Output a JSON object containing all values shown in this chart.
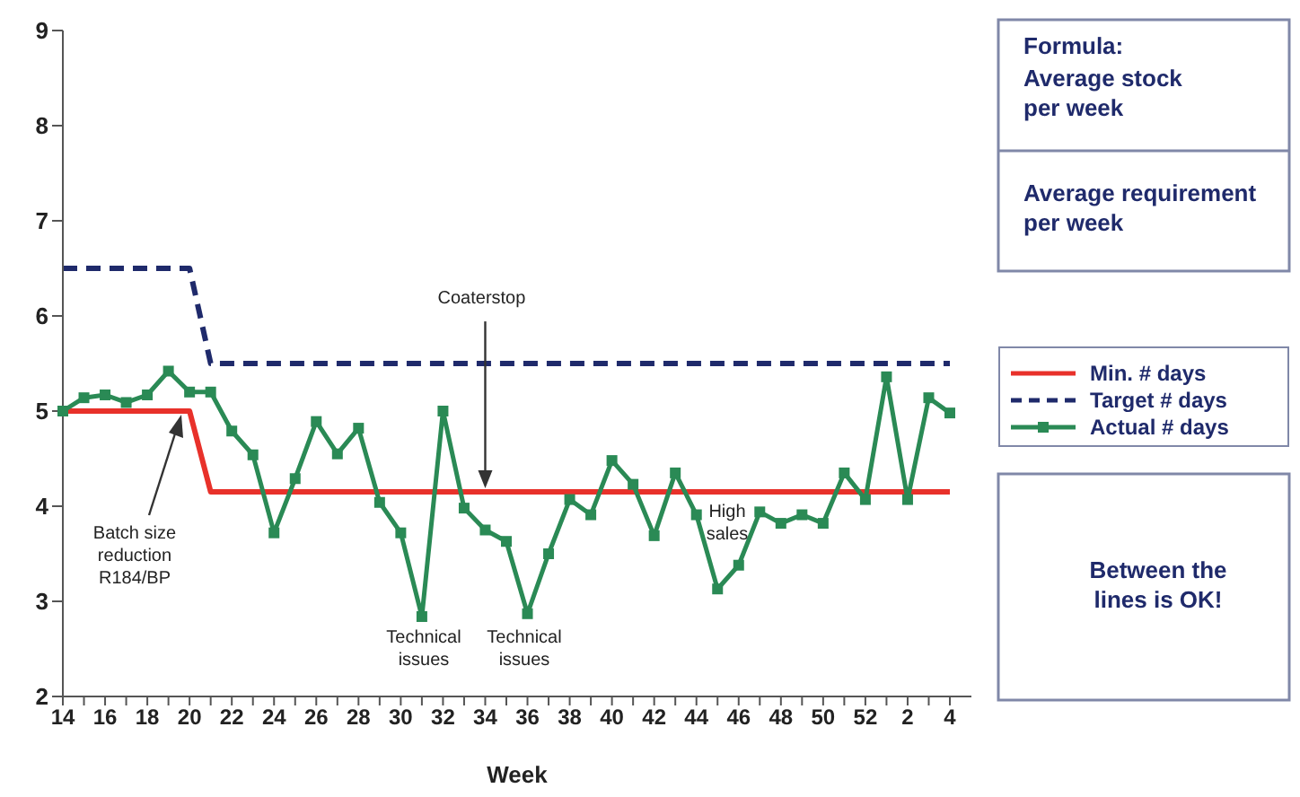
{
  "chart_data": {
    "type": "line",
    "xlabel": "Week",
    "categories": [
      "14",
      null,
      "16",
      null,
      "18",
      null,
      "20",
      null,
      "22",
      null,
      "24",
      null,
      "26",
      null,
      "28",
      null,
      "30",
      null,
      "32",
      null,
      "34",
      null,
      "36",
      null,
      "38",
      null,
      "40",
      null,
      "42",
      null,
      "44",
      null,
      "46",
      null,
      "48",
      null,
      "50",
      null,
      "52",
      null,
      "2",
      null,
      "4"
    ],
    "series": [
      {
        "name": "Min. # days",
        "color": "#e8312a",
        "line_style": "solid",
        "marker": "none",
        "values": [
          5,
          5,
          5,
          5,
          5,
          5,
          5,
          4.15,
          4.15,
          4.15,
          4.15,
          4.15,
          4.15,
          4.15,
          4.15,
          4.15,
          4.15,
          4.15,
          4.15,
          4.15,
          4.15,
          4.15,
          4.15,
          4.15,
          4.15,
          4.15,
          4.15,
          4.15,
          4.15,
          4.15,
          4.15,
          4.15,
          4.15,
          4.15,
          4.15,
          4.15,
          4.15,
          4.15,
          4.15,
          4.15,
          4.15,
          4.15,
          4.15
        ]
      },
      {
        "name": "Target # days",
        "color": "#1f2a6b",
        "line_style": "dashed",
        "marker": "none",
        "values": [
          6.5,
          6.5,
          6.5,
          6.5,
          6.5,
          6.5,
          6.5,
          5.5,
          5.5,
          5.5,
          5.5,
          5.5,
          5.5,
          5.5,
          5.5,
          5.5,
          5.5,
          5.5,
          5.5,
          5.5,
          5.5,
          5.5,
          5.5,
          5.5,
          5.5,
          5.5,
          5.5,
          5.5,
          5.5,
          5.5,
          5.5,
          5.5,
          5.5,
          5.5,
          5.5,
          5.5,
          5.5,
          5.5,
          5.5,
          5.5,
          5.5,
          5.5,
          5.5
        ]
      },
      {
        "name": "Actual # days",
        "color": "#2a8a55",
        "line_style": "solid",
        "marker": "square",
        "values": [
          5.0,
          5.14,
          5.17,
          5.09,
          5.17,
          5.42,
          5.2,
          5.2,
          4.79,
          4.54,
          3.72,
          4.29,
          4.89,
          4.55,
          4.82,
          4.04,
          3.72,
          2.84,
          5.0,
          3.98,
          3.75,
          3.63,
          2.87,
          3.5,
          4.07,
          3.91,
          4.48,
          4.23,
          3.69,
          4.35,
          3.91,
          3.13,
          3.38,
          3.94,
          3.82,
          3.91,
          3.82,
          4.35,
          4.07,
          5.36,
          4.07,
          5.14,
          4.98
        ]
      }
    ],
    "ylim": [
      2,
      9
    ],
    "yticks": [
      2,
      3,
      4,
      5,
      6,
      7,
      8,
      9
    ],
    "grid": false,
    "legend": "right",
    "annotations": [
      {
        "text": "Coaterstop",
        "x": "34",
        "y": 4.15
      },
      "Batch size reduction R184/BP",
      "Technical issues",
      "Technical issues",
      "High sales",
      "Formula:",
      "Average stock per week",
      "Average requirement per week",
      "Between the lines is OK!"
    ]
  }
}
